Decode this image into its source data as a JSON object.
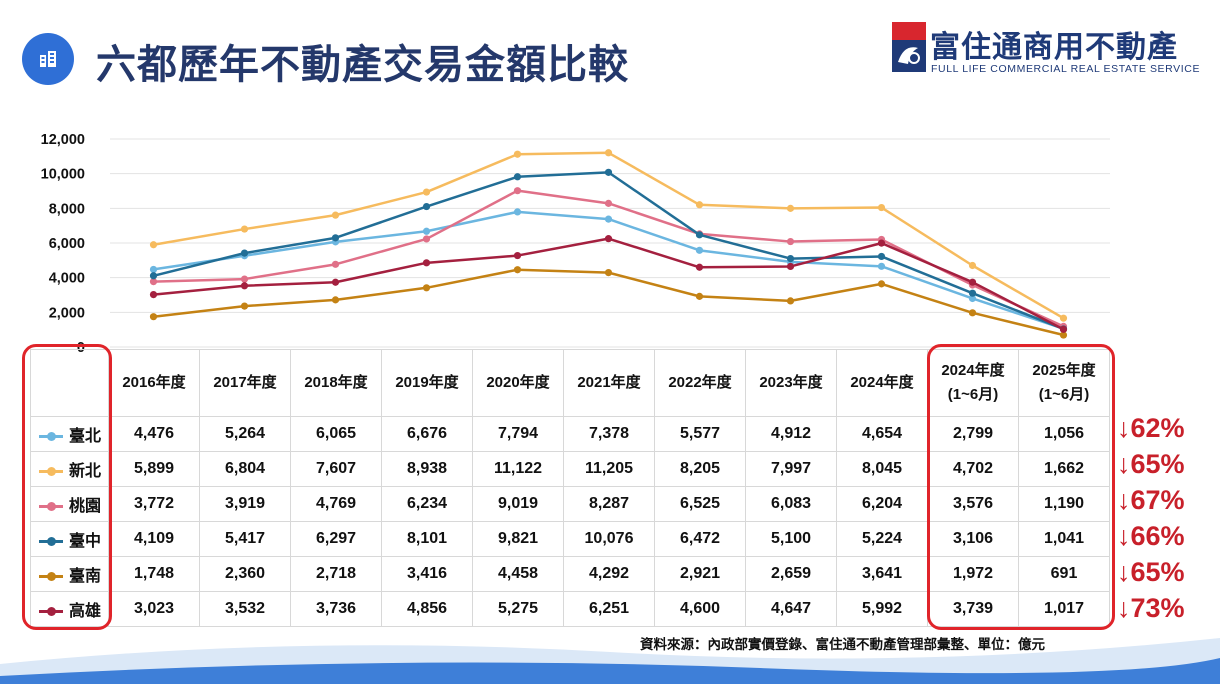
{
  "header": {
    "title": "六都歷年不動產交易金額比較",
    "title_icon": "building-icon",
    "logo_name": "富住通商用不動產",
    "logo_sub": "FULL LIFE COMMERCIAL REAL ESTATE SERVICE"
  },
  "chart_data": {
    "type": "line",
    "title": "",
    "xlabel": "",
    "ylabel": "",
    "ylim": [
      0,
      12000
    ],
    "yticks": [
      "12,000",
      "10,000",
      "8,000",
      "6,000",
      "4,000",
      "2,000",
      "0"
    ],
    "grid": true,
    "legend": "table-left",
    "x": [
      "2016年度",
      "2017年度",
      "2018年度",
      "2019年度",
      "2020年度",
      "2021年度",
      "2022年度",
      "2023年度",
      "2024年度",
      "2024年度(1~6月)",
      "2025年度(1~6月)"
    ],
    "series": [
      {
        "name": "臺北",
        "color": "#6bb6e0",
        "values": [
          4476,
          5264,
          6065,
          6676,
          7794,
          7378,
          5577,
          4912,
          4654,
          2799,
          1056
        ]
      },
      {
        "name": "新北",
        "color": "#f6bb5e",
        "values": [
          5899,
          6804,
          7607,
          8938,
          11122,
          11205,
          8205,
          7997,
          8045,
          4702,
          1662
        ]
      },
      {
        "name": "桃園",
        "color": "#e07088",
        "values": [
          3772,
          3919,
          4769,
          6234,
          9019,
          8287,
          6525,
          6083,
          6204,
          3576,
          1190
        ]
      },
      {
        "name": "臺中",
        "color": "#226e96",
        "values": [
          4109,
          5417,
          6297,
          8101,
          9821,
          10076,
          6472,
          5100,
          5224,
          3106,
          1041
        ]
      },
      {
        "name": "臺南",
        "color": "#c48214",
        "values": [
          1748,
          2360,
          2718,
          3416,
          4458,
          4292,
          2921,
          2659,
          3641,
          1972,
          691
        ]
      },
      {
        "name": "高雄",
        "color": "#a4203f",
        "values": [
          3023,
          3532,
          3736,
          4856,
          5275,
          6251,
          4600,
          4647,
          5992,
          3739,
          1017
        ]
      }
    ]
  },
  "table": {
    "columns": [
      {
        "l1": "2016年度",
        "l2": ""
      },
      {
        "l1": "2017年度",
        "l2": ""
      },
      {
        "l1": "2018年度",
        "l2": ""
      },
      {
        "l1": "2019年度",
        "l2": ""
      },
      {
        "l1": "2020年度",
        "l2": ""
      },
      {
        "l1": "2021年度",
        "l2": ""
      },
      {
        "l1": "2022年度",
        "l2": ""
      },
      {
        "l1": "2023年度",
        "l2": ""
      },
      {
        "l1": "2024年度",
        "l2": ""
      },
      {
        "l1": "2024年度",
        "l2": "(1~6月)"
      },
      {
        "l1": "2025年度",
        "l2": "(1~6月)"
      }
    ],
    "rows": [
      {
        "name": "臺北",
        "color": "#6bb6e0",
        "values": [
          "4,476",
          "5,264",
          "6,065",
          "6,676",
          "7,794",
          "7,378",
          "5,577",
          "4,912",
          "4,654",
          "2,799",
          "1,056"
        ],
        "change": "↓62%"
      },
      {
        "name": "新北",
        "color": "#f6bb5e",
        "values": [
          "5,899",
          "6,804",
          "7,607",
          "8,938",
          "11,122",
          "11,205",
          "8,205",
          "7,997",
          "8,045",
          "4,702",
          "1,662"
        ],
        "change": "↓65%"
      },
      {
        "name": "桃園",
        "color": "#e07088",
        "values": [
          "3,772",
          "3,919",
          "4,769",
          "6,234",
          "9,019",
          "8,287",
          "6,525",
          "6,083",
          "6,204",
          "3,576",
          "1,190"
        ],
        "change": "↓67%"
      },
      {
        "name": "臺中",
        "color": "#226e96",
        "values": [
          "4,109",
          "5,417",
          "6,297",
          "8,101",
          "9,821",
          "10,076",
          "6,472",
          "5,100",
          "5,224",
          "3,106",
          "1,041"
        ],
        "change": "↓66%"
      },
      {
        "name": "臺南",
        "color": "#c48214",
        "values": [
          "1,748",
          "2,360",
          "2,718",
          "3,416",
          "4,458",
          "4,292",
          "2,921",
          "2,659",
          "3,641",
          "1,972",
          "691"
        ],
        "change": "↓65%"
      },
      {
        "name": "高雄",
        "color": "#a4203f",
        "values": [
          "3,023",
          "3,532",
          "3,736",
          "4,856",
          "5,275",
          "6,251",
          "4,600",
          "4,647",
          "5,992",
          "3,739",
          "1,017"
        ],
        "change": "↓73%"
      }
    ]
  },
  "footer": {
    "source": "資料來源：內政部實價登錄、富住通不動產管理部彙整、單位：億元"
  }
}
